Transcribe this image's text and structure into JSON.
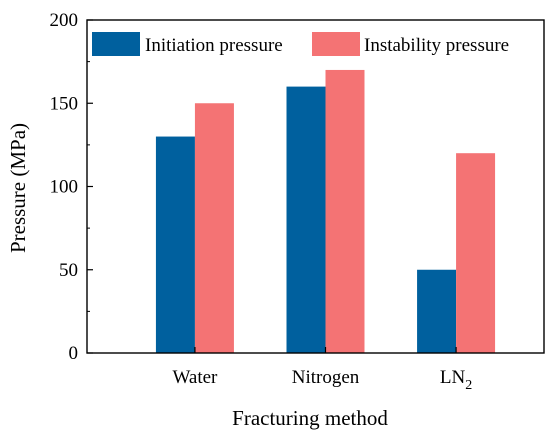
{
  "chart_data": {
    "type": "bar",
    "xlabel": "Fracturing method",
    "ylabel": "Pressure (MPa)",
    "categories": [
      {
        "main": "Water",
        "sub": ""
      },
      {
        "main": "Nitrogen",
        "sub": ""
      },
      {
        "main": "LN",
        "sub": "2"
      }
    ],
    "series": [
      {
        "name": "Initiation pressure",
        "color": "#00609e",
        "values": [
          130,
          160,
          50
        ]
      },
      {
        "name": "Instability pressure",
        "color": "#f47374",
        "values": [
          150,
          170,
          120
        ]
      }
    ],
    "ylim": [
      0,
      200
    ],
    "yticks": [
      0,
      50,
      100,
      150,
      200
    ],
    "grid": false,
    "legend_position": "top"
  }
}
